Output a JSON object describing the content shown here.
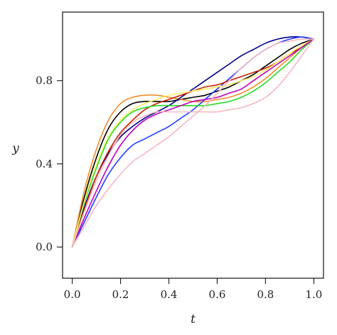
{
  "chart_data": {
    "type": "line",
    "title": "",
    "xlabel": "t",
    "ylabel": "y",
    "xlim": [
      -0.04,
      1.04
    ],
    "ylim": [
      -0.15,
      1.13
    ],
    "xticks": [
      0.0,
      0.2,
      0.4,
      0.6,
      0.8,
      1.0
    ],
    "xtick_labels": [
      "0.0",
      "0.2",
      "0.4",
      "0.6",
      "0.8",
      "1.0"
    ],
    "yticks": [
      0.0,
      0.4,
      0.8
    ],
    "ytick_labels": [
      "0.0",
      "0.4",
      "0.8"
    ],
    "grid": false,
    "legend": "none",
    "series": [
      {
        "color": "#000000",
        "x": [
          0,
          0.05,
          0.1,
          0.15,
          0.2,
          0.25,
          0.3,
          0.35,
          0.4,
          0.45,
          0.5,
          0.55,
          0.6,
          0.65,
          0.7,
          0.75,
          0.8,
          0.85,
          0.9,
          0.95,
          1.0
        ],
        "y": [
          0,
          0.24,
          0.43,
          0.57,
          0.65,
          0.69,
          0.7,
          0.7,
          0.7,
          0.71,
          0.72,
          0.73,
          0.75,
          0.77,
          0.8,
          0.83,
          0.87,
          0.91,
          0.95,
          0.98,
          1.0
        ]
      },
      {
        "color": "#f28c28",
        "x": [
          0,
          0.05,
          0.1,
          0.15,
          0.2,
          0.25,
          0.3,
          0.35,
          0.4,
          0.45,
          0.5,
          0.55,
          0.6,
          0.65,
          0.7,
          0.75,
          0.8,
          0.85,
          0.9,
          0.95,
          1.0
        ],
        "y": [
          0,
          0.27,
          0.47,
          0.61,
          0.69,
          0.72,
          0.73,
          0.73,
          0.72,
          0.71,
          0.7,
          0.7,
          0.71,
          0.72,
          0.74,
          0.77,
          0.81,
          0.86,
          0.91,
          0.96,
          1.0
        ]
      },
      {
        "color": "#00008b",
        "x": [
          0,
          0.05,
          0.1,
          0.15,
          0.2,
          0.25,
          0.3,
          0.35,
          0.4,
          0.45,
          0.5,
          0.55,
          0.6,
          0.65,
          0.7,
          0.75,
          0.8,
          0.85,
          0.9,
          0.95,
          1.0
        ],
        "y": [
          0,
          0.19,
          0.34,
          0.45,
          0.53,
          0.58,
          0.62,
          0.65,
          0.68,
          0.72,
          0.76,
          0.8,
          0.84,
          0.88,
          0.92,
          0.95,
          0.98,
          1.0,
          1.01,
          1.01,
          1.0
        ]
      },
      {
        "color": "#1f3cff",
        "x": [
          0,
          0.05,
          0.1,
          0.15,
          0.2,
          0.25,
          0.3,
          0.35,
          0.4,
          0.45,
          0.5,
          0.55,
          0.6,
          0.65,
          0.7,
          0.75,
          0.8,
          0.85,
          0.9,
          0.95,
          1.0
        ],
        "y": [
          0,
          0.12,
          0.24,
          0.35,
          0.43,
          0.49,
          0.52,
          0.55,
          0.58,
          0.62,
          0.66,
          0.71,
          0.76,
          0.81,
          0.86,
          0.91,
          0.95,
          0.98,
          1.0,
          1.01,
          1.0
        ]
      },
      {
        "color": "#cc2200",
        "x": [
          0,
          0.05,
          0.1,
          0.15,
          0.2,
          0.25,
          0.3,
          0.35,
          0.4,
          0.45,
          0.5,
          0.55,
          0.6,
          0.65,
          0.7,
          0.75,
          0.8,
          0.85,
          0.9,
          0.95,
          1.0
        ],
        "y": [
          0,
          0.18,
          0.34,
          0.46,
          0.55,
          0.61,
          0.66,
          0.69,
          0.71,
          0.73,
          0.75,
          0.77,
          0.78,
          0.8,
          0.82,
          0.84,
          0.86,
          0.89,
          0.93,
          0.96,
          1.0
        ]
      },
      {
        "color": "#22dd22",
        "x": [
          0,
          0.05,
          0.1,
          0.15,
          0.2,
          0.25,
          0.3,
          0.35,
          0.4,
          0.45,
          0.5,
          0.55,
          0.6,
          0.65,
          0.7,
          0.75,
          0.8,
          0.85,
          0.9,
          0.95,
          1.0
        ],
        "y": [
          0,
          0.21,
          0.38,
          0.52,
          0.6,
          0.65,
          0.67,
          0.68,
          0.68,
          0.68,
          0.68,
          0.68,
          0.69,
          0.7,
          0.72,
          0.75,
          0.79,
          0.84,
          0.89,
          0.95,
          1.0
        ]
      },
      {
        "color": "#ffee66",
        "x": [
          0,
          0.05,
          0.1,
          0.15,
          0.2,
          0.25,
          0.3,
          0.35,
          0.4,
          0.45,
          0.5,
          0.55,
          0.6,
          0.65,
          0.7,
          0.75,
          0.8,
          0.85,
          0.9,
          0.95,
          1.0
        ],
        "y": [
          0,
          0.22,
          0.4,
          0.53,
          0.61,
          0.66,
          0.69,
          0.71,
          0.73,
          0.74,
          0.75,
          0.76,
          0.77,
          0.78,
          0.8,
          0.82,
          0.85,
          0.89,
          0.93,
          0.97,
          1.0
        ]
      },
      {
        "color": "#bb00bb",
        "x": [
          0,
          0.05,
          0.1,
          0.15,
          0.2,
          0.25,
          0.3,
          0.35,
          0.4,
          0.45,
          0.5,
          0.55,
          0.6,
          0.65,
          0.7,
          0.75,
          0.8,
          0.85,
          0.9,
          0.95,
          1.0
        ],
        "y": [
          0,
          0.14,
          0.27,
          0.39,
          0.49,
          0.56,
          0.61,
          0.64,
          0.66,
          0.68,
          0.7,
          0.71,
          0.72,
          0.74,
          0.76,
          0.8,
          0.84,
          0.88,
          0.92,
          0.96,
          1.0
        ]
      },
      {
        "color": "#f5b8c0",
        "x": [
          0,
          0.05,
          0.1,
          0.15,
          0.2,
          0.25,
          0.3,
          0.35,
          0.4,
          0.45,
          0.5,
          0.55,
          0.6,
          0.65,
          0.7,
          0.75,
          0.8,
          0.85,
          0.9,
          0.95,
          1.0
        ],
        "y": [
          0,
          0.17,
          0.32,
          0.44,
          0.54,
          0.6,
          0.63,
          0.65,
          0.65,
          0.65,
          0.65,
          0.65,
          0.65,
          0.66,
          0.67,
          0.69,
          0.72,
          0.77,
          0.84,
          0.92,
          1.0
        ]
      },
      {
        "color": "#f5b8c0",
        "x": [
          0,
          0.05,
          0.1,
          0.15,
          0.2,
          0.25,
          0.3,
          0.35,
          0.4,
          0.45,
          0.5,
          0.55,
          0.6,
          0.65,
          0.7,
          0.75,
          0.8,
          0.85,
          0.9,
          0.95,
          1.0
        ],
        "y": [
          0,
          0.1,
          0.2,
          0.28,
          0.35,
          0.41,
          0.45,
          0.49,
          0.53,
          0.58,
          0.63,
          0.68,
          0.74,
          0.8,
          0.86,
          0.91,
          0.95,
          0.98,
          0.99,
          1.0,
          1.0
        ]
      }
    ]
  }
}
